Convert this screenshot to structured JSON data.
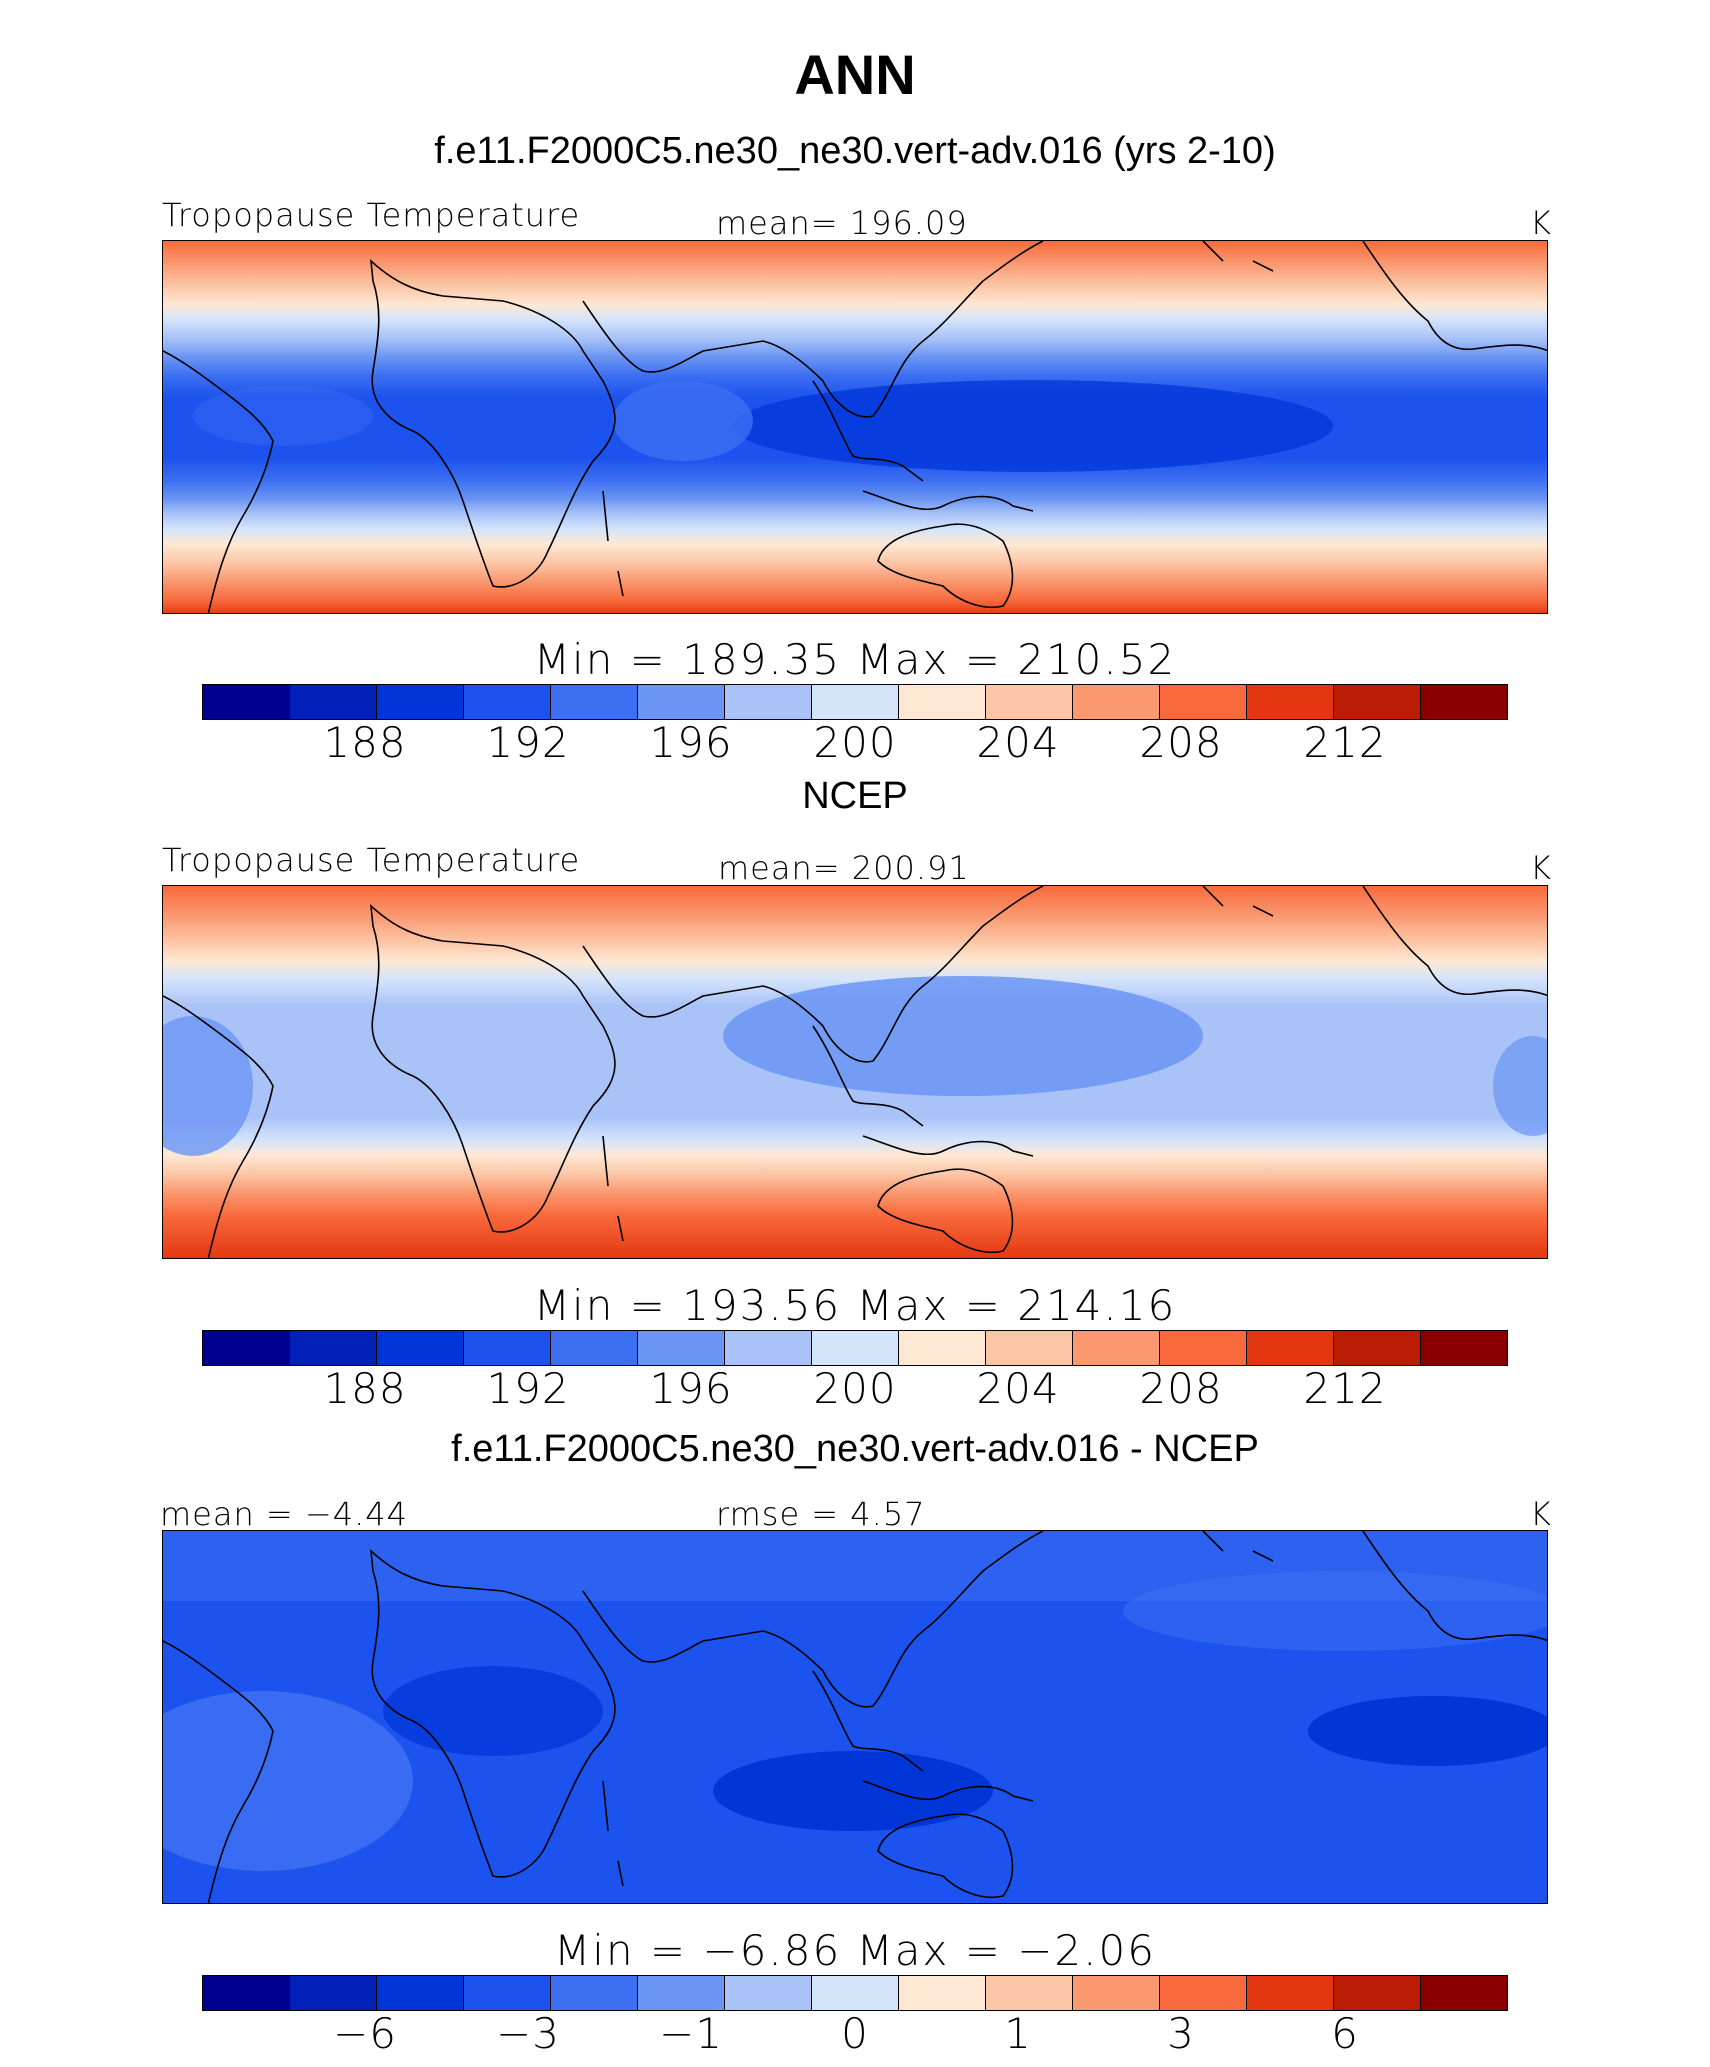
{
  "title": "ANN",
  "colors": [
    "#000090",
    "#0020b8",
    "#0036d8",
    "#1c52ee",
    "#3d6ff2",
    "#6b95f4",
    "#a9c3f8",
    "#d4e4fb",
    "#fee8d4",
    "#fcc6a6",
    "#fa9870",
    "#f86a3c",
    "#e43610",
    "#bb1c06",
    "#8a0000"
  ],
  "panels": [
    {
      "subtitle": "f.e11.F2000C5.ne30_ne30.vert-adv.016 (yrs 2-10)",
      "left_label": "Tropopause  Temperature",
      "center_label": "mean=  196.09",
      "units": "K",
      "minmax": "Min  =  189.35  Max  =  210.52",
      "ticks": [
        "188",
        "192",
        "196",
        "200",
        "204",
        "208",
        "212"
      ]
    },
    {
      "subtitle": "NCEP",
      "left_label": "Tropopause  Temperature",
      "center_label": "mean=  200.91",
      "units": "K",
      "minmax": "Min  =  193.56  Max  =  214.16",
      "ticks": [
        "188",
        "192",
        "196",
        "200",
        "204",
        "208",
        "212"
      ]
    },
    {
      "subtitle": "f.e11.F2000C5.ne30_ne30.vert-adv.016 - NCEP",
      "left_label": "mean  =   −4.44",
      "center_label": "rmse  =     4.57",
      "units": "K",
      "minmax": "Min  =    −6.86  Max  =    −2.06",
      "ticks": [
        "−6",
        "−3",
        "−1",
        "0",
        "1",
        "3",
        "6"
      ]
    }
  ]
}
